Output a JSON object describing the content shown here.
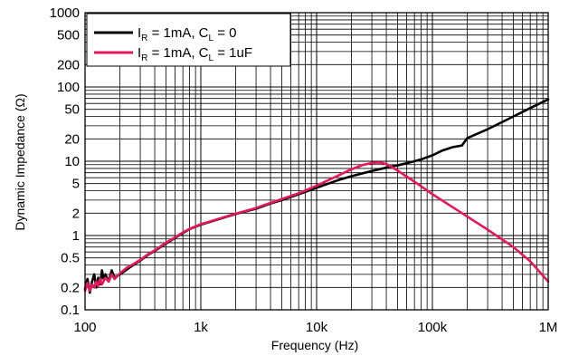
{
  "chart_data": {
    "type": "line",
    "title": "",
    "xlabel": "Frequency (Hz)",
    "ylabel": "Dynamic Impedance (Ω)",
    "x_scale": "log",
    "y_scale": "log",
    "xlim": [
      100,
      1000000
    ],
    "ylim": [
      0.1,
      1000
    ],
    "grid": true,
    "legend_position": "top-left",
    "x_ticks": [
      {
        "value": 100,
        "label": "100"
      },
      {
        "value": 1000,
        "label": "1k"
      },
      {
        "value": 10000,
        "label": "10k"
      },
      {
        "value": 100000,
        "label": "100k"
      },
      {
        "value": 1000000,
        "label": "1M"
      }
    ],
    "y_ticks": [
      {
        "value": 0.1,
        "label": "0.1"
      },
      {
        "value": 0.2,
        "label": "0.2"
      },
      {
        "value": 0.5,
        "label": "0.5"
      },
      {
        "value": 1,
        "label": "1"
      },
      {
        "value": 2,
        "label": "2"
      },
      {
        "value": 5,
        "label": "5"
      },
      {
        "value": 10,
        "label": "10"
      },
      {
        "value": 20,
        "label": "20"
      },
      {
        "value": 50,
        "label": "50"
      },
      {
        "value": 100,
        "label": "100"
      },
      {
        "value": 200,
        "label": "200"
      },
      {
        "value": 500,
        "label": "500"
      },
      {
        "value": 1000,
        "label": "1000"
      }
    ],
    "series": [
      {
        "name": "I_R = 1mA, C_L = 0",
        "legend": {
          "pre": "I",
          "sub1": "R",
          "mid": " = 1mA, C",
          "sub2": "L",
          "post": " = 0"
        },
        "color": "#000000",
        "x": [
          100,
          105,
          110,
          115,
          120,
          125,
          130,
          135,
          140,
          145,
          150,
          160,
          170,
          180,
          200,
          230,
          260,
          300,
          350,
          400,
          500,
          600,
          700,
          800,
          1000,
          1500,
          2000,
          3000,
          4000,
          5000,
          7000,
          10000,
          15000,
          20000,
          30000,
          40000,
          50000,
          60000,
          70000,
          80000,
          100000,
          120000,
          150000,
          180000,
          200000,
          300000,
          500000,
          700000,
          1000000
        ],
        "y": [
          0.19,
          0.26,
          0.17,
          0.24,
          0.3,
          0.2,
          0.27,
          0.22,
          0.34,
          0.26,
          0.3,
          0.24,
          0.34,
          0.27,
          0.3,
          0.35,
          0.4,
          0.46,
          0.55,
          0.62,
          0.78,
          0.93,
          1.08,
          1.22,
          1.4,
          1.7,
          1.95,
          2.3,
          2.7,
          3.0,
          3.6,
          4.4,
          5.5,
          6.3,
          7.4,
          8.2,
          8.8,
          9.4,
          10.0,
          10.6,
          12.0,
          13.8,
          15.5,
          16.3,
          20.5,
          27,
          40,
          52,
          68
        ]
      },
      {
        "name": "I_R = 1mA, C_L = 1uF",
        "legend": {
          "pre": "I",
          "sub1": "R",
          "mid": " = 1mA, C",
          "sub2": "L",
          "post": " = 1uF"
        },
        "color": "#e8175d",
        "x": [
          100,
          105,
          110,
          115,
          120,
          125,
          130,
          135,
          140,
          150,
          160,
          170,
          180,
          200,
          230,
          260,
          300,
          350,
          400,
          500,
          600,
          700,
          800,
          1000,
          1500,
          2000,
          3000,
          4000,
          5000,
          7000,
          10000,
          15000,
          20000,
          25000,
          30000,
          35000,
          40000,
          50000,
          70000,
          100000,
          200000,
          300000,
          500000,
          700000,
          1000000
        ],
        "y": [
          0.18,
          0.23,
          0.18,
          0.22,
          0.2,
          0.24,
          0.21,
          0.26,
          0.22,
          0.27,
          0.24,
          0.3,
          0.26,
          0.31,
          0.37,
          0.41,
          0.47,
          0.56,
          0.63,
          0.8,
          0.95,
          1.1,
          1.23,
          1.42,
          1.72,
          1.97,
          2.35,
          2.75,
          3.1,
          3.7,
          4.7,
          6.3,
          7.8,
          8.9,
          9.5,
          9.6,
          9.2,
          7.5,
          5.3,
          3.6,
          1.8,
          1.2,
          0.7,
          0.45,
          0.24
        ]
      }
    ]
  }
}
